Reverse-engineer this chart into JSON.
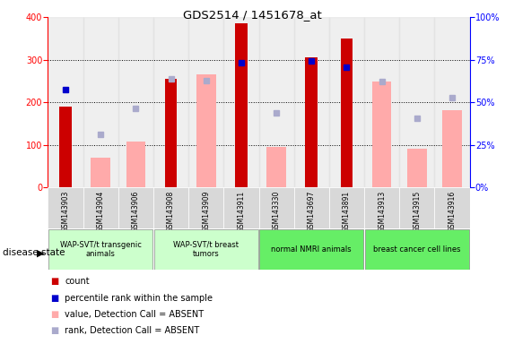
{
  "title": "GDS2514 / 1451678_at",
  "samples": [
    "GSM143903",
    "GSM143904",
    "GSM143906",
    "GSM143908",
    "GSM143909",
    "GSM143911",
    "GSM143330",
    "GSM143697",
    "GSM143891",
    "GSM143913",
    "GSM143915",
    "GSM143916"
  ],
  "count_values": [
    190,
    null,
    null,
    255,
    null,
    385,
    null,
    305,
    350,
    null,
    null,
    null
  ],
  "absent_value_values": [
    null,
    70,
    108,
    null,
    265,
    null,
    95,
    null,
    null,
    248,
    92,
    182
  ],
  "percentile_rank_left": [
    230,
    null,
    null,
    null,
    null,
    293,
    null,
    298,
    282,
    null,
    null,
    null
  ],
  "absent_rank_left": [
    null,
    125,
    185,
    255,
    252,
    null,
    175,
    null,
    null,
    248,
    162,
    210
  ],
  "ylim": [
    0,
    400
  ],
  "y2lim": [
    0,
    100
  ],
  "yticks": [
    0,
    100,
    200,
    300,
    400
  ],
  "y2ticks": [
    0,
    25,
    50,
    75,
    100
  ],
  "y2ticklabels": [
    "0%",
    "25%",
    "50%",
    "75%",
    "100%"
  ],
  "count_color": "#cc0000",
  "absent_value_color": "#ffaaaa",
  "percentile_color": "#0000cc",
  "absent_rank_color": "#aaaacc",
  "group_configs": [
    {
      "label": "WAP-SVT/t transgenic\nanimals",
      "start": 0,
      "end": 2,
      "color": "#ccffcc"
    },
    {
      "label": "WAP-SVT/t breast\ntumors",
      "start": 3,
      "end": 5,
      "color": "#ccffcc"
    },
    {
      "label": "normal NMRI animals",
      "start": 6,
      "end": 8,
      "color": "#66ee66"
    },
    {
      "label": "breast cancer cell lines",
      "start": 9,
      "end": 11,
      "color": "#66ee66"
    }
  ]
}
